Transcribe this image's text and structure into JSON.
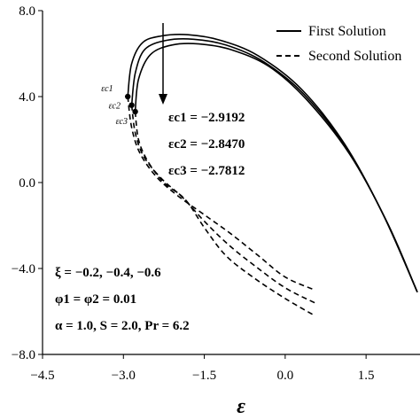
{
  "chart_data": {
    "type": "line",
    "xlabel": "ε",
    "ylabel": "",
    "xlim": [
      -4.5,
      2.5
    ],
    "ylim": [
      -8.0,
      8.0
    ],
    "x_ticks": [
      "−4.5",
      "−3.0",
      "−1.5",
      "0.0",
      "1.5"
    ],
    "y_ticks": [
      "8.0",
      "4.0",
      "0.0",
      "−4.0",
      "−8.0"
    ],
    "y_tick_values": [
      8.0,
      4.0,
      0.0,
      -4.0,
      -8.0
    ],
    "x_tick_values": [
      -4.5,
      -3.0,
      -1.5,
      0.0,
      1.5
    ],
    "grid": false,
    "legend_position": "top-right",
    "legend": [
      {
        "label": "First Solution",
        "style": "solid"
      },
      {
        "label": "Second Solution",
        "style": "dashed"
      }
    ],
    "series": [
      {
        "style": "solid",
        "points": [
          [
            -2.9192,
            4.0
          ],
          [
            -2.85,
            5.5
          ],
          [
            -2.65,
            6.5
          ],
          [
            -2.3,
            6.82
          ],
          [
            -1.8,
            6.88
          ],
          [
            -1.2,
            6.62
          ],
          [
            -0.5,
            5.9
          ],
          [
            0.3,
            4.35
          ],
          [
            1.1,
            1.8
          ],
          [
            1.8,
            -1.4
          ],
          [
            2.45,
            -5.1
          ]
        ]
      },
      {
        "style": "solid",
        "points": [
          [
            -2.847,
            3.6
          ],
          [
            -2.78,
            5.1
          ],
          [
            -2.6,
            6.2
          ],
          [
            -2.2,
            6.62
          ],
          [
            -1.7,
            6.67
          ],
          [
            -1.1,
            6.4
          ],
          [
            -0.4,
            5.62
          ],
          [
            0.35,
            4.1
          ],
          [
            1.15,
            1.55
          ],
          [
            1.85,
            -1.65
          ],
          [
            2.45,
            -5.1
          ]
        ]
      },
      {
        "style": "solid",
        "points": [
          [
            -2.7812,
            3.3
          ],
          [
            -2.72,
            4.8
          ],
          [
            -2.5,
            5.95
          ],
          [
            -2.1,
            6.4
          ],
          [
            -1.6,
            6.45
          ],
          [
            -1.0,
            6.18
          ],
          [
            -0.3,
            5.4
          ],
          [
            0.4,
            3.85
          ],
          [
            1.2,
            1.3
          ],
          [
            1.9,
            -1.9
          ],
          [
            2.45,
            -5.1
          ]
        ]
      },
      {
        "style": "dashed",
        "points": [
          [
            -2.9192,
            4.0
          ],
          [
            -2.85,
            2.6
          ],
          [
            -2.7,
            1.4
          ],
          [
            -2.4,
            0.3
          ],
          [
            -2.0,
            -0.6
          ],
          [
            -1.5,
            -1.5
          ],
          [
            -1.0,
            -2.4
          ],
          [
            -0.5,
            -3.4
          ],
          [
            0.0,
            -4.4
          ],
          [
            0.55,
            -5.0
          ]
        ]
      },
      {
        "style": "dashed",
        "points": [
          [
            -2.847,
            3.6
          ],
          [
            -2.78,
            2.3
          ],
          [
            -2.62,
            1.2
          ],
          [
            -2.3,
            0.2
          ],
          [
            -1.9,
            -0.7
          ],
          [
            -1.5,
            -1.8
          ],
          [
            -1.05,
            -2.9
          ],
          [
            -0.55,
            -3.9
          ],
          [
            0.0,
            -4.9
          ],
          [
            0.55,
            -5.6
          ]
        ]
      },
      {
        "style": "dashed",
        "points": [
          [
            -2.7812,
            3.3
          ],
          [
            -2.72,
            2.0
          ],
          [
            -2.55,
            1.0
          ],
          [
            -2.25,
            0.0
          ],
          [
            -1.85,
            -0.8
          ],
          [
            -1.5,
            -2.1
          ],
          [
            -1.1,
            -3.4
          ],
          [
            -0.6,
            -4.4
          ],
          [
            0.0,
            -5.4
          ],
          [
            0.55,
            -6.2
          ]
        ]
      }
    ],
    "critical_points": [
      {
        "label": "εc1",
        "x": -2.9192,
        "y": 4.0
      },
      {
        "label": "εc2",
        "x": -2.847,
        "y": 3.6
      },
      {
        "label": "εc3",
        "x": -2.7812,
        "y": 3.3
      }
    ],
    "annotations": {
      "critical_values": [
        "εc1 = −2.9192",
        "εc2 = −2.8470",
        "εc3 = −2.7812"
      ],
      "params": [
        "ξ = −0.2, −0.4, −0.6",
        "φ1 = φ2 = 0.01",
        "α = 1.0, S = 2.0, Pr = 6.2"
      ]
    }
  }
}
